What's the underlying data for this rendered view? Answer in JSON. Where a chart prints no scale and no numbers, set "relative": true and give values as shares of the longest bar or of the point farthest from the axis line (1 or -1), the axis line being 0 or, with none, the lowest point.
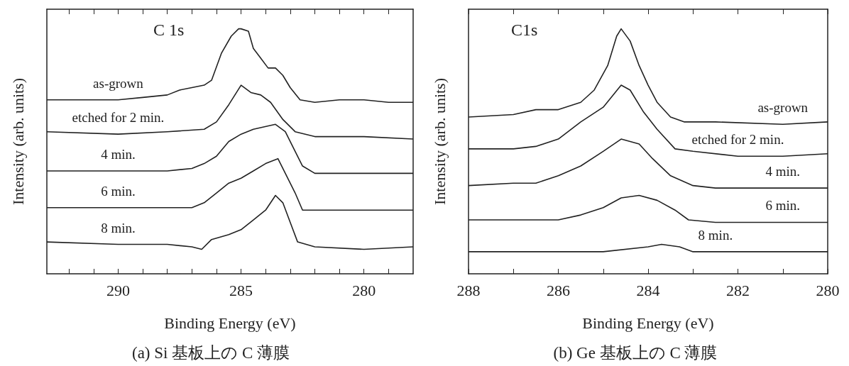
{
  "chart_data": [
    {
      "type": "line",
      "title": "(a) Si 基板上の C 薄膜",
      "xlabel": "Binding Energy (eV)",
      "ylabel": "Intensity (arb. units)",
      "relative": true,
      "annotations": [
        "C 1s"
      ],
      "xlim": [
        292.9,
        278.0
      ],
      "xticks": [
        {
          "value": 292,
          "label": null
        },
        {
          "value": 291,
          "label": null
        },
        290,
        {
          "value": 289,
          "label": null
        },
        {
          "value": 288,
          "label": null
        },
        {
          "value": 287,
          "label": null
        },
        {
          "value": 286,
          "label": null
        },
        285,
        {
          "value": 284,
          "label": null
        },
        {
          "value": 283,
          "label": null
        },
        {
          "value": 282,
          "label": null
        },
        {
          "value": 281,
          "label": null
        },
        280,
        {
          "value": 279,
          "label": null
        }
      ],
      "grid": false,
      "legend": false,
      "marker": "none",
      "line_style": "solid",
      "series": [
        {
          "name": "as-grown",
          "color": "#222222",
          "x": [
            292.9,
            292,
            291,
            290,
            289,
            288,
            287.5,
            287,
            286.5,
            286.2,
            285.8,
            285.4,
            285.1,
            285.0,
            284.7,
            284.5,
            284.2,
            283.9,
            283.6,
            283.3,
            283.0,
            282.6,
            282,
            281,
            280,
            279,
            278
          ],
          "values": [
            0.71,
            0.71,
            0.71,
            0.71,
            0.72,
            0.73,
            0.75,
            0.76,
            0.77,
            0.79,
            0.9,
            0.97,
            1.0,
            1.0,
            0.99,
            0.92,
            0.88,
            0.84,
            0.84,
            0.81,
            0.76,
            0.71,
            0.7,
            0.71,
            0.71,
            0.7,
            0.7
          ]
        },
        {
          "name": "etched for 2 min.",
          "color": "#222222",
          "x": [
            292.9,
            290,
            288,
            286.5,
            286,
            285.5,
            285.0,
            284.6,
            284.2,
            283.8,
            283.3,
            282.8,
            282,
            280,
            278
          ],
          "values": [
            0.58,
            0.57,
            0.58,
            0.59,
            0.62,
            0.69,
            0.77,
            0.74,
            0.73,
            0.7,
            0.63,
            0.58,
            0.56,
            0.56,
            0.55
          ]
        },
        {
          "name": "4 min.",
          "color": "#222222",
          "x": [
            292.9,
            290,
            288,
            287,
            286.5,
            286,
            285.5,
            285,
            284.5,
            283.6,
            283.2,
            282.8,
            282.5,
            282,
            281,
            280,
            278
          ],
          "values": [
            0.42,
            0.42,
            0.42,
            0.43,
            0.45,
            0.48,
            0.54,
            0.57,
            0.59,
            0.61,
            0.58,
            0.5,
            0.44,
            0.41,
            0.41,
            0.41,
            0.41
          ]
        },
        {
          "name": "6 min.",
          "color": "#222222",
          "x": [
            292.9,
            290,
            288,
            287,
            286.5,
            286,
            285.5,
            285,
            284.5,
            284,
            283.5,
            283.2,
            282.8,
            282.5,
            281,
            280,
            278
          ],
          "values": [
            0.27,
            0.27,
            0.27,
            0.27,
            0.29,
            0.33,
            0.37,
            0.39,
            0.42,
            0.45,
            0.47,
            0.41,
            0.33,
            0.26,
            0.26,
            0.26,
            0.26
          ]
        },
        {
          "name": "8 min.",
          "color": "#222222",
          "x": [
            292.9,
            290,
            288,
            287,
            286.6,
            286.2,
            285.5,
            285,
            284.5,
            284.0,
            283.6,
            283.3,
            283.0,
            282.7,
            282.0,
            280,
            278
          ],
          "values": [
            0.13,
            0.12,
            0.12,
            0.11,
            0.1,
            0.14,
            0.16,
            0.18,
            0.22,
            0.26,
            0.32,
            0.29,
            0.21,
            0.13,
            0.11,
            0.1,
            0.11
          ]
        }
      ]
    },
    {
      "type": "line",
      "title": "(b) Ge 基板上の C 薄膜",
      "xlabel": "Binding Energy (eV)",
      "ylabel": "Intensity (arb. units)",
      "relative": true,
      "annotations": [
        "C1s"
      ],
      "xlim": [
        288,
        280
      ],
      "xticks": [
        288,
        {
          "value": 287,
          "label": null
        },
        286,
        {
          "value": 285,
          "label": null
        },
        284,
        {
          "value": 283,
          "label": null
        },
        282,
        {
          "value": 281,
          "label": null
        },
        280
      ],
      "grid": false,
      "legend": false,
      "marker": "none",
      "line_style": "solid",
      "series": [
        {
          "name": "as-grown",
          "color": "#222222",
          "x": [
            288,
            287,
            286.5,
            286,
            285.5,
            285.2,
            284.9,
            284.7,
            284.6,
            284.4,
            284.2,
            284,
            283.8,
            283.5,
            283.2,
            282.5,
            281,
            280
          ],
          "values": [
            0.64,
            0.65,
            0.67,
            0.67,
            0.7,
            0.75,
            0.85,
            0.97,
            1.0,
            0.95,
            0.85,
            0.77,
            0.7,
            0.64,
            0.62,
            0.62,
            0.61,
            0.62
          ]
        },
        {
          "name": "etched for 2 min.",
          "color": "#222222",
          "x": [
            288,
            287,
            286.5,
            286,
            285.5,
            285,
            284.6,
            284.4,
            284.1,
            283.8,
            283.4,
            283,
            282,
            281,
            280
          ],
          "values": [
            0.51,
            0.51,
            0.52,
            0.55,
            0.62,
            0.68,
            0.77,
            0.75,
            0.66,
            0.59,
            0.51,
            0.5,
            0.48,
            0.48,
            0.49
          ]
        },
        {
          "name": "4 min.",
          "color": "#222222",
          "x": [
            288,
            287,
            286.5,
            286,
            285.5,
            285,
            284.6,
            284.2,
            283.9,
            283.5,
            283,
            282.5,
            281,
            280
          ],
          "values": [
            0.36,
            0.37,
            0.37,
            0.4,
            0.44,
            0.5,
            0.55,
            0.53,
            0.47,
            0.4,
            0.36,
            0.35,
            0.35,
            0.35
          ]
        },
        {
          "name": "6 min.",
          "color": "#222222",
          "x": [
            288,
            287,
            286,
            285.5,
            285,
            284.6,
            284.2,
            283.8,
            283.4,
            283.1,
            282.5,
            281,
            280
          ],
          "values": [
            0.22,
            0.22,
            0.22,
            0.24,
            0.27,
            0.31,
            0.32,
            0.3,
            0.26,
            0.22,
            0.21,
            0.21,
            0.21
          ]
        },
        {
          "name": "8 min.",
          "color": "#222222",
          "x": [
            288,
            286,
            285,
            284,
            283.7,
            283.3,
            283,
            282.5,
            280
          ],
          "values": [
            0.09,
            0.09,
            0.09,
            0.11,
            0.12,
            0.11,
            0.09,
            0.09,
            0.09
          ]
        }
      ]
    }
  ]
}
